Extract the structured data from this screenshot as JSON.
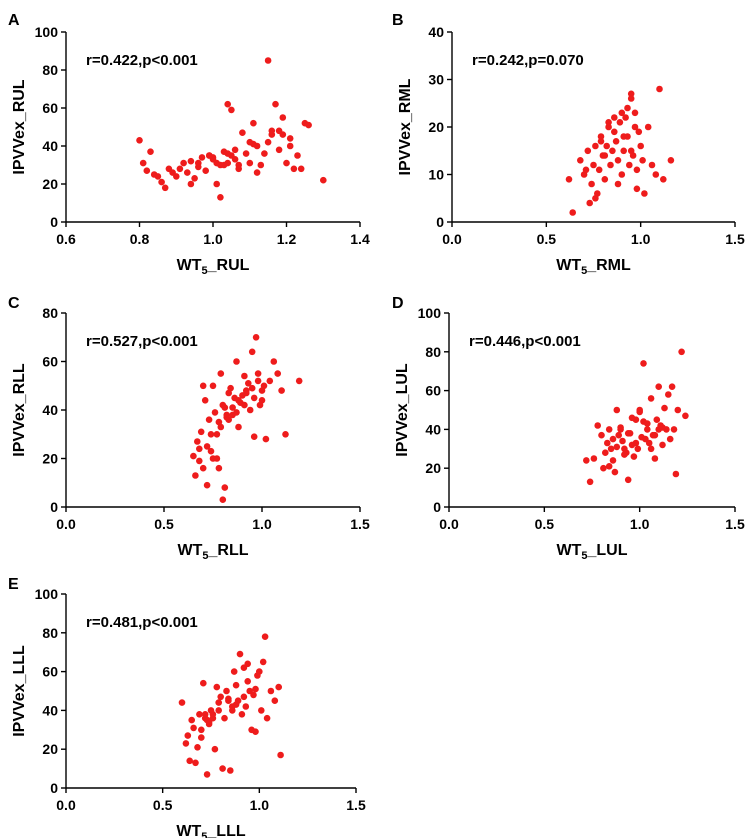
{
  "figure": {
    "point_color": "#ee1c1c"
  },
  "chart_data": [
    {
      "type": "scatter",
      "panel": "A",
      "xlabel_main": "WT",
      "xlabel_sub": "5",
      "xlabel_suffix": "_RUL",
      "ylabel": "IPVVex_RUL",
      "annotation": "r=0.422,p<0.001",
      "xlim": [
        0.6,
        1.4
      ],
      "ylim": [
        0,
        100
      ],
      "xticks": [
        0.6,
        0.8,
        1.0,
        1.2,
        1.4
      ],
      "xtick_labels": [
        "0.6",
        "0.8",
        "1.0",
        "1.2",
        "1.4"
      ],
      "yticks": [
        0,
        20,
        40,
        60,
        80,
        100
      ],
      "ytick_labels": [
        "0",
        "20",
        "40",
        "60",
        "80",
        "100"
      ],
      "x": [
        0.8,
        0.81,
        0.83,
        0.84,
        0.86,
        0.87,
        0.88,
        0.9,
        0.92,
        0.93,
        0.94,
        0.95,
        0.96,
        0.97,
        0.98,
        0.99,
        1.0,
        1.01,
        1.01,
        1.02,
        1.03,
        1.04,
        1.04,
        1.05,
        1.05,
        1.06,
        1.07,
        1.08,
        1.1,
        1.11,
        1.11,
        1.12,
        1.13,
        1.14,
        1.15,
        1.16,
        1.16,
        1.17,
        1.18,
        1.19,
        1.2,
        1.21,
        1.22,
        1.23,
        1.24,
        1.25,
        1.26,
        1.3,
        0.85,
        0.91,
        0.96,
        1.0,
        1.03,
        1.06,
        1.09,
        1.12,
        1.15,
        1.18,
        1.21,
        1.02,
        0.89,
        0.94,
        0.99,
        1.07,
        1.19,
        1.04,
        0.82,
        1.1
      ],
      "y": [
        43,
        31,
        37,
        25,
        21,
        18,
        28,
        24,
        31,
        26,
        20,
        23,
        29,
        34,
        27,
        35,
        33,
        31,
        20,
        13,
        30,
        31,
        62,
        35,
        59,
        38,
        28,
        47,
        31,
        52,
        41,
        26,
        30,
        36,
        85,
        46,
        48,
        62,
        38,
        46,
        31,
        40,
        28,
        35,
        28,
        52,
        51,
        22,
        24,
        28,
        31,
        34,
        37,
        33,
        36,
        40,
        42,
        48,
        44,
        30,
        26,
        32,
        35,
        30,
        55,
        36,
        27,
        42
      ]
    },
    {
      "type": "scatter",
      "panel": "B",
      "xlabel_main": "WT",
      "xlabel_sub": "5",
      "xlabel_suffix": "_RML",
      "ylabel": "IPVVex_RML",
      "annotation": "r=0.242,p=0.070",
      "xlim": [
        0,
        1.5
      ],
      "ylim": [
        0,
        40
      ],
      "xticks": [
        0,
        0.5,
        1.0,
        1.5
      ],
      "xtick_labels": [
        "0.0",
        "0.5",
        "1.0",
        "1.5"
      ],
      "yticks": [
        0,
        10,
        20,
        30,
        40
      ],
      "ytick_labels": [
        "0",
        "10",
        "20",
        "30",
        "40"
      ],
      "x": [
        0.62,
        0.64,
        0.68,
        0.7,
        0.72,
        0.73,
        0.74,
        0.75,
        0.76,
        0.77,
        0.78,
        0.79,
        0.8,
        0.81,
        0.82,
        0.83,
        0.84,
        0.85,
        0.86,
        0.87,
        0.88,
        0.89,
        0.9,
        0.9,
        0.91,
        0.92,
        0.93,
        0.94,
        0.95,
        0.95,
        0.96,
        0.97,
        0.98,
        0.99,
        1.0,
        1.01,
        1.02,
        1.04,
        1.06,
        1.08,
        1.1,
        1.12,
        1.16,
        0.71,
        0.79,
        0.83,
        0.88,
        0.93,
        0.97,
        0.76,
        0.86,
        0.91,
        0.98,
        0.81,
        0.95
      ],
      "y": [
        9,
        2,
        13,
        10,
        15,
        4,
        8,
        12,
        16,
        6,
        11,
        18,
        14,
        9,
        16,
        20,
        12,
        15,
        19,
        17,
        13,
        21,
        23,
        10,
        15,
        22,
        18,
        12,
        26,
        27,
        14,
        23,
        7,
        19,
        16,
        13,
        6,
        20,
        12,
        10,
        28,
        9,
        13,
        11,
        17,
        21,
        8,
        24,
        20,
        5,
        22,
        18,
        11,
        14,
        15
      ]
    },
    {
      "type": "scatter",
      "panel": "C",
      "xlabel_main": "WT",
      "xlabel_sub": "5",
      "xlabel_suffix": "_RLL",
      "ylabel": "IPVVex_RLL",
      "annotation": "r=0.527,p<0.001",
      "xlim": [
        0,
        1.5
      ],
      "ylim": [
        0,
        80
      ],
      "xticks": [
        0,
        0.5,
        1.0,
        1.5
      ],
      "xtick_labels": [
        "0.0",
        "0.5",
        "1.0",
        "1.5"
      ],
      "yticks": [
        0,
        20,
        40,
        60,
        80
      ],
      "ytick_labels": [
        "0",
        "20",
        "40",
        "60",
        "80"
      ],
      "x": [
        0.65,
        0.66,
        0.67,
        0.68,
        0.69,
        0.7,
        0.71,
        0.72,
        0.73,
        0.74,
        0.75,
        0.76,
        0.77,
        0.78,
        0.79,
        0.8,
        0.8,
        0.81,
        0.82,
        0.83,
        0.84,
        0.85,
        0.86,
        0.87,
        0.88,
        0.89,
        0.9,
        0.91,
        0.92,
        0.93,
        0.94,
        0.95,
        0.96,
        0.97,
        0.98,
        0.99,
        1.0,
        1.01,
        1.02,
        1.04,
        1.06,
        1.08,
        1.1,
        1.12,
        1.19,
        0.72,
        0.75,
        0.78,
        0.82,
        0.85,
        0.88,
        0.92,
        0.95,
        0.98,
        0.7,
        0.74,
        0.79,
        0.83,
        0.87,
        0.91,
        0.96,
        1.0,
        0.68,
        0.77,
        0.81
      ],
      "y": [
        21,
        13,
        27,
        19,
        31,
        50,
        44,
        9,
        36,
        23,
        50,
        39,
        30,
        16,
        55,
        42,
        3,
        41,
        37,
        47,
        49,
        38,
        45,
        60,
        33,
        43,
        46,
        54,
        48,
        51,
        40,
        64,
        29,
        70,
        55,
        42,
        44,
        50,
        28,
        52,
        60,
        55,
        48,
        30,
        52,
        25,
        20,
        35,
        38,
        41,
        44,
        47,
        49,
        52,
        16,
        30,
        33,
        36,
        39,
        42,
        45,
        48,
        24,
        20,
        8
      ]
    },
    {
      "type": "scatter",
      "panel": "D",
      "xlabel_main": "WT",
      "xlabel_sub": "5",
      "xlabel_suffix": "_LUL",
      "ylabel": "IPVVex_LUL",
      "annotation": "r=0.446,p<0.001",
      "xlim": [
        0,
        1.5
      ],
      "ylim": [
        0,
        100
      ],
      "xticks": [
        0,
        0.5,
        1.0,
        1.5
      ],
      "xtick_labels": [
        "0.0",
        "0.5",
        "1.0",
        "1.5"
      ],
      "yticks": [
        0,
        20,
        40,
        60,
        80,
        100
      ],
      "ytick_labels": [
        "0",
        "20",
        "40",
        "60",
        "80",
        "100"
      ],
      "x": [
        0.72,
        0.74,
        0.76,
        0.78,
        0.8,
        0.81,
        0.82,
        0.83,
        0.84,
        0.85,
        0.86,
        0.87,
        0.88,
        0.89,
        0.9,
        0.91,
        0.92,
        0.93,
        0.94,
        0.95,
        0.96,
        0.97,
        0.98,
        0.99,
        1.0,
        1.01,
        1.02,
        1.03,
        1.04,
        1.05,
        1.06,
        1.07,
        1.08,
        1.09,
        1.1,
        1.11,
        1.12,
        1.13,
        1.14,
        1.15,
        1.16,
        1.17,
        1.18,
        1.19,
        1.2,
        1.22,
        1.24,
        0.86,
        0.9,
        0.94,
        0.98,
        1.02,
        1.06,
        1.1,
        0.92,
        0.96,
        1.0,
        1.04,
        1.08,
        1.12,
        0.84,
        0.88
      ],
      "y": [
        24,
        13,
        25,
        42,
        37,
        20,
        28,
        33,
        40,
        30,
        24,
        18,
        50,
        37,
        40,
        34,
        30,
        28,
        14,
        38,
        32,
        26,
        45,
        30,
        49,
        36,
        74,
        35,
        40,
        33,
        56,
        37,
        25,
        45,
        62,
        42,
        32,
        51,
        40,
        58,
        35,
        62,
        40,
        17,
        50,
        80,
        47,
        35,
        41,
        38,
        33,
        44,
        30,
        40,
        27,
        46,
        50,
        43,
        37,
        41,
        21,
        31
      ]
    },
    {
      "type": "scatter",
      "panel": "E",
      "xlabel_main": "WT",
      "xlabel_sub": "5",
      "xlabel_suffix": "_LLL",
      "ylabel": "IPVVex_LLL",
      "annotation": "r=0.481,p<0.001",
      "xlim": [
        0,
        1.5
      ],
      "ylim": [
        0,
        100
      ],
      "xticks": [
        0,
        0.5,
        1.0,
        1.5
      ],
      "xtick_labels": [
        "0.0",
        "0.5",
        "1.0",
        "1.5"
      ],
      "yticks": [
        0,
        20,
        40,
        60,
        80,
        100
      ],
      "ytick_labels": [
        "0",
        "20",
        "40",
        "60",
        "80",
        "100"
      ],
      "x": [
        0.6,
        0.62,
        0.63,
        0.64,
        0.65,
        0.66,
        0.67,
        0.68,
        0.69,
        0.7,
        0.71,
        0.72,
        0.73,
        0.74,
        0.75,
        0.76,
        0.77,
        0.78,
        0.79,
        0.8,
        0.81,
        0.82,
        0.83,
        0.84,
        0.85,
        0.86,
        0.87,
        0.88,
        0.89,
        0.9,
        0.91,
        0.92,
        0.93,
        0.94,
        0.95,
        0.96,
        0.97,
        0.98,
        0.99,
        1.0,
        1.01,
        1.02,
        1.03,
        1.04,
        1.06,
        1.08,
        1.1,
        1.11,
        0.7,
        0.73,
        0.76,
        0.79,
        0.86,
        0.92,
        0.98,
        0.72,
        0.74,
        0.84,
        0.88,
        0.94
      ],
      "y": [
        44,
        23,
        27,
        14,
        35,
        31,
        13,
        21,
        38,
        30,
        54,
        36,
        7,
        33,
        40,
        36,
        20,
        52,
        44,
        47,
        10,
        36,
        50,
        45,
        9,
        40,
        60,
        53,
        45,
        69,
        38,
        62,
        42,
        64,
        50,
        30,
        48,
        29,
        58,
        60,
        40,
        65,
        78,
        36,
        50,
        45,
        52,
        17,
        26,
        35,
        38,
        40,
        42,
        47,
        51,
        38,
        34,
        46,
        43,
        55
      ]
    }
  ]
}
